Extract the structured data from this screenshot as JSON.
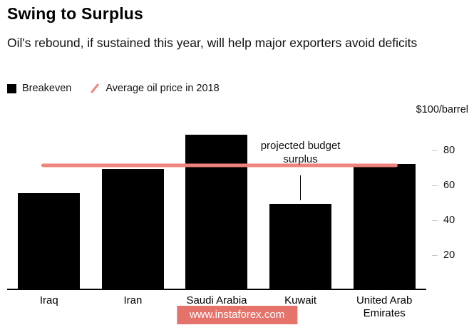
{
  "header": {
    "title": "Swing to Surplus",
    "subtitle": "Oil's rebound, if sustained this year, will help major exporters avoid deficits"
  },
  "legend": {
    "breakeven": "Breakeven",
    "avg_price": "Average oil price in 2018"
  },
  "axis": {
    "unit_label": "$100/barrel",
    "ticks": [
      80,
      60,
      40,
      20
    ]
  },
  "watermark": {
    "text": "www.instaforex.com"
  },
  "colors": {
    "bar": "#000000",
    "avg_line": "#f0837b",
    "watermark_bg": "#e5736b"
  },
  "chart_data": {
    "type": "bar",
    "title": "Swing to Surplus",
    "subtitle": "Oil's rebound, if sustained this year, will help major exporters avoid deficits",
    "categories": [
      "Iraq",
      "Iran",
      "Saudi Arabia",
      "Kuwait",
      "United Arab Emirates"
    ],
    "series": [
      {
        "name": "Breakeven",
        "values": [
          55,
          69,
          89,
          49,
          72
        ]
      }
    ],
    "reference_line": {
      "name": "Average oil price in 2018",
      "value": 71
    },
    "annotation": {
      "text": "projected budget surplus",
      "target_category": "Kuwait",
      "points_to_value": 49
    },
    "ylabel": "$100/barrel",
    "ylim": [
      0,
      100
    ],
    "grid": false,
    "legend_position": "top-left",
    "y_axis_side": "right"
  }
}
